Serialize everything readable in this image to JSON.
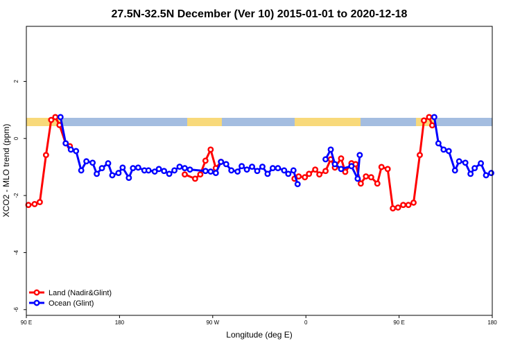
{
  "chart_data": {
    "type": "line",
    "title": "27.5N-32.5N December (Ver 10)   2015-01-01 to 2020-12-18",
    "xlabel": "Longitude (deg E)",
    "ylabel": "XCO2 - MLO trend (ppm)",
    "xlim": [
      90,
      540
    ],
    "ylim": [
      -6.2,
      3.93
    ],
    "xticks": [
      {
        "value": 90,
        "label": "90 E"
      },
      180,
      {
        "value": 270,
        "label": "90 W"
      },
      {
        "value": 360,
        "label": "0"
      },
      {
        "value": 450,
        "label": "90 E"
      },
      {
        "value": 540,
        "label": "180"
      }
    ],
    "yticks": [
      -6,
      -4,
      -2,
      0,
      2
    ],
    "legend": "bottom-left",
    "series": [
      {
        "name": "Land (Nadir&Glint)",
        "color": "#ff0000",
        "x": [
          92,
          98,
          103,
          109,
          114,
          118,
          122,
          128,
          132,
          null,
          243,
          253,
          258,
          263,
          268,
          273,
          278,
          null,
          349,
          353,
          359,
          363,
          369,
          373,
          379,
          384,
          388,
          394,
          398,
          404,
          408,
          413,
          418,
          423,
          429,
          433,
          439,
          444,
          449,
          454,
          459,
          464,
          470,
          474,
          479,
          482
        ],
        "values": [
          -2.33,
          -2.3,
          -2.23,
          -0.58,
          0.65,
          0.75,
          0.47,
          -0.17,
          -0.27,
          null,
          -1.26,
          -1.41,
          -1.26,
          -0.78,
          -0.39,
          -1.04,
          -0.82,
          null,
          -1.41,
          -1.33,
          -1.36,
          -1.24,
          -1.09,
          -1.26,
          -1.14,
          -0.73,
          -1.02,
          -0.7,
          -1.17,
          -0.87,
          -0.9,
          -1.58,
          -1.33,
          -1.36,
          -1.58,
          -1.0,
          -1.07,
          -2.45,
          -2.42,
          -2.33,
          -2.33,
          -2.25,
          -0.58,
          0.63,
          0.75,
          0.46
        ]
      },
      {
        "name": "Ocean (Glint)",
        "color": "#0000ff",
        "x": [
          123,
          128,
          133,
          138,
          143,
          148,
          154,
          158,
          163,
          169,
          173,
          179,
          183,
          189,
          193,
          198,
          204,
          208,
          214,
          218,
          223,
          228,
          233,
          238,
          243,
          248,
          263,
          268,
          273,
          278,
          283,
          288,
          294,
          298,
          303,
          308,
          313,
          318,
          323,
          328,
          333,
          339,
          343,
          348,
          352,
          null,
          379,
          384,
          388,
          394,
          404,
          410,
          412,
          null,
          484,
          488,
          493,
          498,
          504,
          508,
          514,
          519,
          523,
          529,
          534,
          539
        ],
        "values": [
          0.75,
          -0.17,
          -0.39,
          -0.44,
          -1.12,
          -0.8,
          -0.85,
          -1.24,
          -1.04,
          -0.87,
          -1.29,
          -1.21,
          -1.02,
          -1.38,
          -1.04,
          -1.02,
          -1.12,
          -1.12,
          -1.16,
          -1.07,
          -1.14,
          -1.24,
          -1.12,
          -0.99,
          -1.04,
          -1.09,
          -1.14,
          -1.16,
          -1.21,
          -0.82,
          -0.9,
          -1.12,
          -1.16,
          -0.97,
          -1.09,
          -0.99,
          -1.14,
          -0.99,
          -1.24,
          -1.04,
          -1.04,
          -1.12,
          -1.24,
          -1.12,
          -1.6,
          null,
          -0.73,
          -0.39,
          -0.9,
          -1.07,
          -0.97,
          -1.41,
          -0.58,
          null,
          0.75,
          -0.17,
          -0.39,
          -0.44,
          -1.12,
          -0.8,
          -0.85,
          -1.24,
          -1.04,
          -0.87,
          -1.29,
          -1.21
        ]
      }
    ]
  }
}
